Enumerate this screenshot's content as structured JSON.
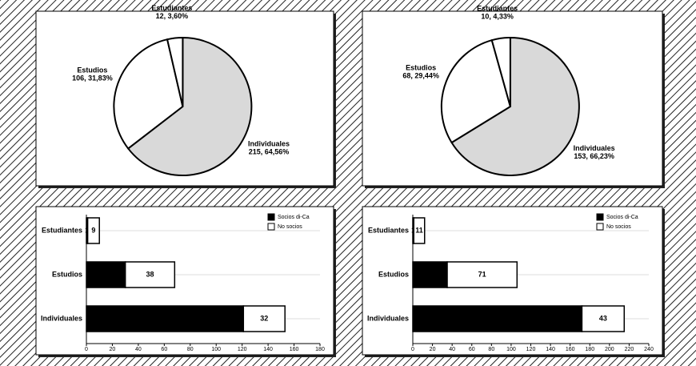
{
  "chart_data": [
    {
      "type": "pie",
      "categories": [
        "Individuales",
        "Estudios",
        "Estudiantes"
      ],
      "values": [
        215,
        106,
        12
      ],
      "value_labels": [
        "215, 64,56%",
        "106, 31,83%",
        "12, 3,60%"
      ],
      "colors": [
        "#d9d9d9",
        "#ffffff",
        "#ffffff"
      ]
    },
    {
      "type": "pie",
      "categories": [
        "Individuales",
        "Estudios",
        "Estudiantes"
      ],
      "values": [
        153,
        68,
        10
      ],
      "value_labels": [
        "153, 66,23%",
        "68, 29,44%",
        "10, 4,33%"
      ],
      "colors": [
        "#d9d9d9",
        "#ffffff",
        "#ffffff"
      ]
    },
    {
      "type": "bar",
      "orientation": "horizontal",
      "stacked": true,
      "categories": [
        "Estudiantes",
        "Estudios",
        "Individuales"
      ],
      "series": [
        {
          "name": "Socios di-Ca",
          "color": "#000000",
          "values": [
            1,
            30,
            121
          ]
        },
        {
          "name": "No socios",
          "color": "#ffffff",
          "values": [
            9,
            38,
            32
          ]
        }
      ],
      "xlim": [
        0,
        180
      ],
      "xticks": [
        0,
        20,
        40,
        60,
        80,
        100,
        120,
        140,
        160,
        180
      ],
      "legend": "upper right"
    },
    {
      "type": "bar",
      "orientation": "horizontal",
      "stacked": true,
      "categories": [
        "Estudiantes",
        "Estudios",
        "Individuales"
      ],
      "series": [
        {
          "name": "Socios di-Ca",
          "color": "#000000",
          "values": [
            1,
            35,
            172
          ]
        },
        {
          "name": "No socios",
          "color": "#ffffff",
          "values": [
            11,
            71,
            43
          ]
        }
      ],
      "xlim": [
        0,
        240
      ],
      "xticks": [
        0,
        20,
        40,
        60,
        80,
        100,
        120,
        140,
        160,
        180,
        200,
        220,
        240
      ],
      "legend": "upper right"
    }
  ]
}
